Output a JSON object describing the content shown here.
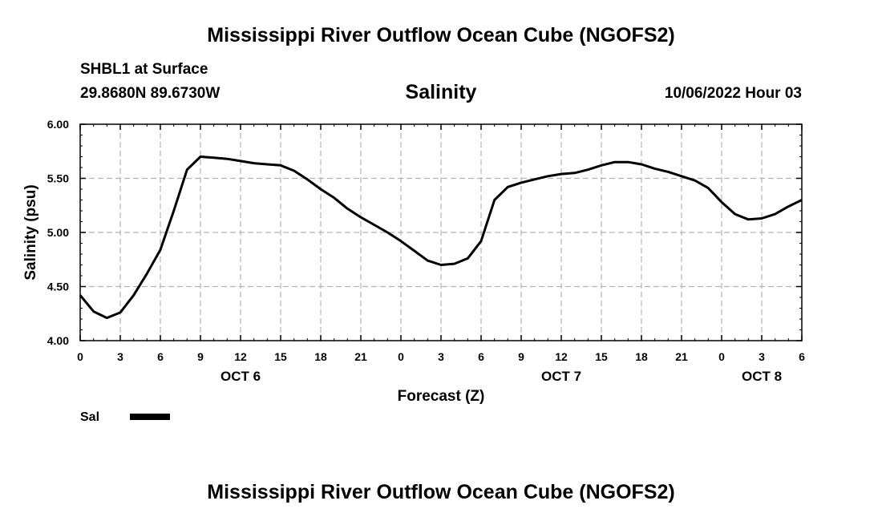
{
  "header": {
    "title": "Mississippi River Outflow Ocean Cube (NGOFS2)",
    "station": "SHBL1 at Surface",
    "coords": "29.8680N  89.6730W",
    "variable": "Salinity",
    "datetime": "10/06/2022 Hour 03"
  },
  "footer": {
    "title": "Mississippi River Outflow Ocean Cube (NGOFS2)"
  },
  "chart_data": {
    "type": "line",
    "title": "Salinity",
    "xlabel": "Forecast (Z)",
    "ylabel": "Salinity (psu)",
    "xlim": [
      0,
      54
    ],
    "ylim": [
      4.0,
      6.0
    ],
    "grid": true,
    "x_ticks": [
      0,
      3,
      6,
      9,
      12,
      15,
      18,
      21,
      24,
      27,
      30,
      33,
      36,
      39,
      42,
      45,
      48,
      51,
      54
    ],
    "x_tick_labels": [
      "0",
      "3",
      "6",
      "9",
      "12",
      "15",
      "18",
      "21",
      "0",
      "3",
      "6",
      "9",
      "12",
      "15",
      "18",
      "21",
      "0",
      "3",
      "6"
    ],
    "y_ticks": [
      4.0,
      4.5,
      5.0,
      5.5,
      6.0
    ],
    "y_tick_labels": [
      "4.00",
      "4.50",
      "5.00",
      "5.50",
      "6.00"
    ],
    "date_labels": [
      {
        "x": 12,
        "label": "OCT 6"
      },
      {
        "x": 36,
        "label": "OCT 7"
      },
      {
        "x": 51,
        "label": "OCT 8"
      }
    ],
    "legend": {
      "position": "bottom-left",
      "entries": [
        "Sal"
      ]
    },
    "series": [
      {
        "name": "Sal",
        "x": [
          0,
          1,
          2,
          3,
          4,
          5,
          6,
          7,
          8,
          9,
          10,
          11,
          12,
          13,
          14,
          15,
          16,
          17,
          18,
          19,
          20,
          21,
          22,
          23,
          24,
          25,
          26,
          27,
          28,
          29,
          30,
          31,
          32,
          33,
          34,
          35,
          36,
          37,
          38,
          39,
          40,
          41,
          42,
          43,
          44,
          45,
          46,
          47,
          48,
          49,
          50,
          51,
          52,
          53,
          54
        ],
        "values": [
          4.42,
          4.27,
          4.21,
          4.26,
          4.42,
          4.62,
          4.84,
          5.2,
          5.58,
          5.7,
          5.69,
          5.68,
          5.66,
          5.64,
          5.63,
          5.62,
          5.57,
          5.49,
          5.4,
          5.32,
          5.22,
          5.14,
          5.07,
          5.0,
          4.92,
          4.83,
          4.74,
          4.7,
          4.71,
          4.76,
          4.92,
          5.3,
          5.42,
          5.46,
          5.49,
          5.52,
          5.54,
          5.55,
          5.58,
          5.62,
          5.65,
          5.65,
          5.63,
          5.59,
          5.56,
          5.52,
          5.48,
          5.41,
          5.28,
          5.17,
          5.12,
          5.13,
          5.17,
          5.24,
          5.3
        ]
      }
    ]
  }
}
